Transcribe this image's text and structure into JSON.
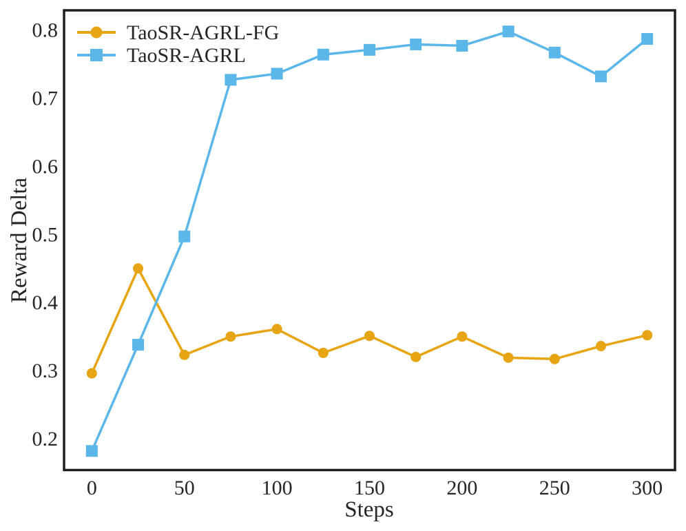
{
  "chart_data": {
    "type": "line",
    "title": "",
    "xlabel": "Steps",
    "ylabel": "Reward Delta",
    "x": [
      0,
      25,
      50,
      75,
      100,
      125,
      150,
      175,
      200,
      225,
      250,
      275,
      300
    ],
    "series": [
      {
        "name": "TaoSR-AGRL-FG",
        "color": "#E7A413",
        "marker": "circle",
        "values": [
          0.296,
          0.45,
          0.323,
          0.35,
          0.361,
          0.326,
          0.351,
          0.32,
          0.35,
          0.319,
          0.317,
          0.336,
          0.352
        ]
      },
      {
        "name": "TaoSR-AGRL",
        "color": "#5BB6E9",
        "marker": "square",
        "values": [
          0.182,
          0.338,
          0.497,
          0.727,
          0.736,
          0.764,
          0.771,
          0.779,
          0.777,
          0.798,
          0.767,
          0.732,
          0.787
        ]
      }
    ],
    "xticks": [
      "0",
      "50",
      "100",
      "150",
      "200",
      "250",
      "300"
    ],
    "yticks": [
      "0.2",
      "0.3",
      "0.4",
      "0.5",
      "0.6",
      "0.7",
      "0.8"
    ],
    "xlim": [
      -15,
      315
    ],
    "ylim": [
      0.154,
      0.829
    ],
    "grid": false,
    "legend_position": "upper-left",
    "frame_color": "#1f1f1f",
    "text_color": "#262626"
  }
}
